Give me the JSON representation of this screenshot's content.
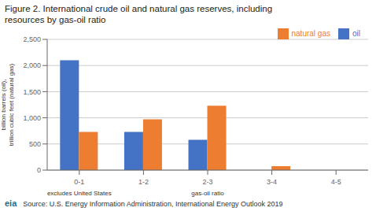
{
  "chart_data": {
    "type": "bar",
    "title": "Figure 2. International crude oil and natural gas reserves, including\nresources by gas-oil ratio",
    "ylabel": "billion barrels (oil), trillion cubic feet (natural gas)",
    "categories": [
      "0-1",
      "1-2",
      "2-3",
      "3-4",
      "4-5"
    ],
    "series": [
      {
        "name": "oil",
        "color": "#4472C4",
        "values": [
          2100,
          730,
          580,
          0,
          0
        ]
      },
      {
        "name": "natural gas",
        "color": "#ED7D31",
        "values": [
          730,
          970,
          1230,
          75,
          0
        ]
      }
    ],
    "ylim": [
      0,
      2500
    ],
    "yticks": [
      0,
      500,
      {
        "value": 1000,
        "label": "1,000"
      },
      {
        "value": 1500,
        "label": "1,500"
      },
      {
        "value": 2000,
        "label": "2,000"
      },
      {
        "value": 2500,
        "label": "2,500"
      }
    ],
    "grid": true,
    "legend": "upper right",
    "annotations": [
      {
        "text": "excludes United States",
        "category": "0-1"
      },
      {
        "text": "gas-oil ratio",
        "category": "2-3"
      },
      {
        "text": "eia",
        "color": "#1F6B8E"
      },
      {
        "text": "Source: U.S. Energy Information Administration, International Energy Outlook 2019"
      }
    ]
  }
}
